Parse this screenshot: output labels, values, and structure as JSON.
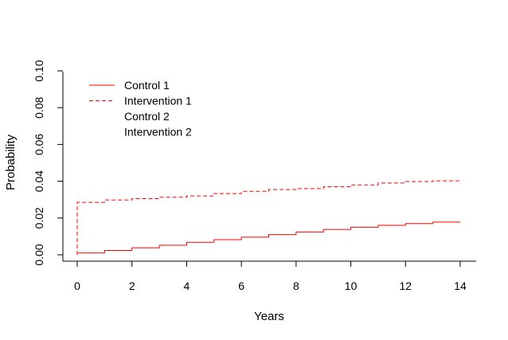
{
  "chart_data": {
    "type": "line",
    "step": true,
    "xlabel": "Years",
    "ylabel": "Probability",
    "xlim": [
      0,
      14
    ],
    "ylim": [
      0,
      0.1
    ],
    "x_ticks": [
      0,
      2,
      4,
      6,
      8,
      10,
      12,
      14
    ],
    "x_tick_labels": [
      "0",
      "2",
      "4",
      "6",
      "8",
      "10",
      "12",
      "14"
    ],
    "y_ticks": [
      0,
      0.02,
      0.04,
      0.06,
      0.08,
      0.1
    ],
    "y_tick_labels": [
      "0.00",
      "0.02",
      "0.04",
      "0.06",
      "0.08",
      "0.10"
    ],
    "grid": false,
    "legend_position": "top-left",
    "series": [
      {
        "name": "Control 1",
        "color": "#ff0000",
        "line_style": "solid",
        "x": [
          0,
          1,
          2,
          3,
          4,
          5,
          6,
          7,
          8,
          9,
          10,
          11,
          12,
          13,
          14
        ],
        "values": [
          0.001,
          0.0024,
          0.0038,
          0.0052,
          0.0068,
          0.0082,
          0.0096,
          0.011,
          0.0124,
          0.0138,
          0.015,
          0.016,
          0.017,
          0.0178,
          0.0178
        ]
      },
      {
        "name": "Intervention 1",
        "color": "#ff0000",
        "line_style": "dashed",
        "x": [
          0,
          1,
          2,
          3,
          4,
          5,
          6,
          7,
          8,
          9,
          10,
          11,
          12,
          13,
          14
        ],
        "values": [
          0.0285,
          0.0298,
          0.0305,
          0.0313,
          0.032,
          0.0333,
          0.0345,
          0.0355,
          0.036,
          0.037,
          0.038,
          0.039,
          0.0398,
          0.0402,
          0.0402
        ]
      },
      {
        "name": "Control 2",
        "color": "#ff0000",
        "line_style": "none",
        "x": [],
        "values": []
      },
      {
        "name": "Intervention 2",
        "color": "#ff0000",
        "line_style": "none",
        "x": [],
        "values": []
      }
    ]
  }
}
